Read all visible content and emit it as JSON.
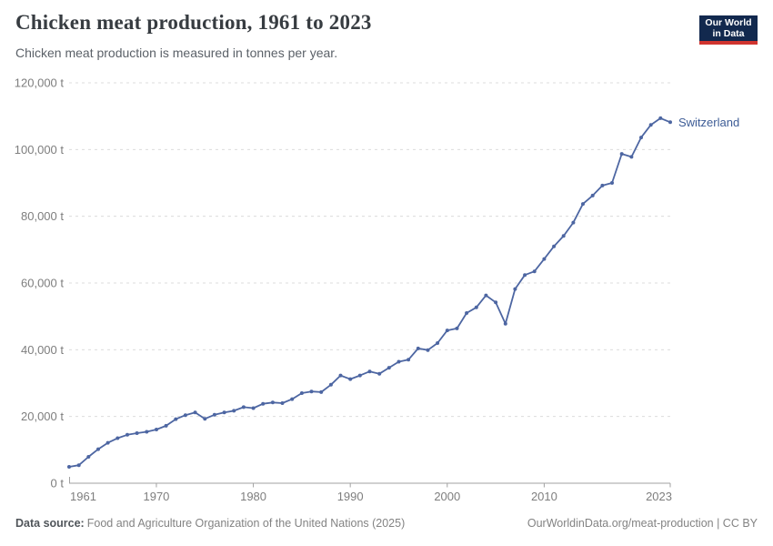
{
  "header": {
    "title": "Chicken meat production, 1961 to 2023",
    "subtitle": "Chicken meat production is measured in tonnes per year.",
    "logo": {
      "line1": "Our World",
      "line2": "in Data"
    }
  },
  "footer": {
    "source_label": "Data source:",
    "source_text": "Food and Agriculture Organization of the United Nations (2025)",
    "link_text": "OurWorldinData.org/meat-production | CC BY"
  },
  "colors": {
    "background": "#ffffff",
    "line": "#4d66a2",
    "marker": "#4d66a2",
    "series_label": "#3d5c96",
    "grid": "#dcdcdc",
    "axis": "#a1a1a1",
    "tick_text": "#7e7e7e",
    "logo_bg": "#12294e",
    "logo_red": "#d0342f"
  },
  "chart_data": {
    "type": "line",
    "title": "Chicken meat production, 1961 to 2023",
    "subtitle": "Chicken meat production is measured in tonnes per year.",
    "xlabel": "",
    "ylabel": "tonnes per year",
    "grid": "horizontal-dashed",
    "legend_position": "end-of-line-label",
    "x_range": [
      1961,
      2023
    ],
    "ylim": [
      0,
      120000
    ],
    "x_ticks": [
      1961,
      1970,
      1980,
      1990,
      2000,
      2010,
      2023
    ],
    "x_tick_labels": [
      "1961",
      "1970",
      "1980",
      "1990",
      "2000",
      "2010",
      "2023"
    ],
    "y_ticks": [
      0,
      20000,
      40000,
      60000,
      80000,
      100000,
      120000
    ],
    "y_tick_labels": [
      "0 t",
      "20,000 t",
      "40,000 t",
      "60,000 t",
      "80,000 t",
      "100,000 t",
      "120,000 t"
    ],
    "series": [
      {
        "name": "Switzerland",
        "color": "#4d66a2",
        "x": [
          1961,
          1962,
          1963,
          1964,
          1965,
          1966,
          1967,
          1968,
          1969,
          1970,
          1971,
          1972,
          1973,
          1974,
          1975,
          1976,
          1977,
          1978,
          1979,
          1980,
          1981,
          1982,
          1983,
          1984,
          1985,
          1986,
          1987,
          1988,
          1989,
          1990,
          1991,
          1992,
          1993,
          1994,
          1995,
          1996,
          1997,
          1998,
          1999,
          2000,
          2001,
          2002,
          2003,
          2004,
          2005,
          2006,
          2007,
          2008,
          2009,
          2010,
          2011,
          2012,
          2013,
          2014,
          2015,
          2016,
          2017,
          2018,
          2019,
          2020,
          2021,
          2022,
          2023
        ],
        "values": [
          4900,
          5400,
          7900,
          10200,
          12100,
          13500,
          14500,
          15000,
          15400,
          16100,
          17200,
          19200,
          20400,
          21200,
          19300,
          20500,
          21200,
          21700,
          22800,
          22500,
          23800,
          24200,
          24000,
          25200,
          27000,
          27500,
          27300,
          29500,
          32300,
          31200,
          32300,
          33500,
          32800,
          34600,
          36400,
          37000,
          40400,
          39900,
          42000,
          45800,
          46400,
          51000,
          52700,
          56300,
          54200,
          47800,
          58200,
          62400,
          63500,
          67200,
          71000,
          74100,
          78100,
          83700,
          86200,
          89200,
          90000,
          98700,
          97800,
          103600,
          107400,
          109400,
          108200
        ]
      }
    ]
  }
}
